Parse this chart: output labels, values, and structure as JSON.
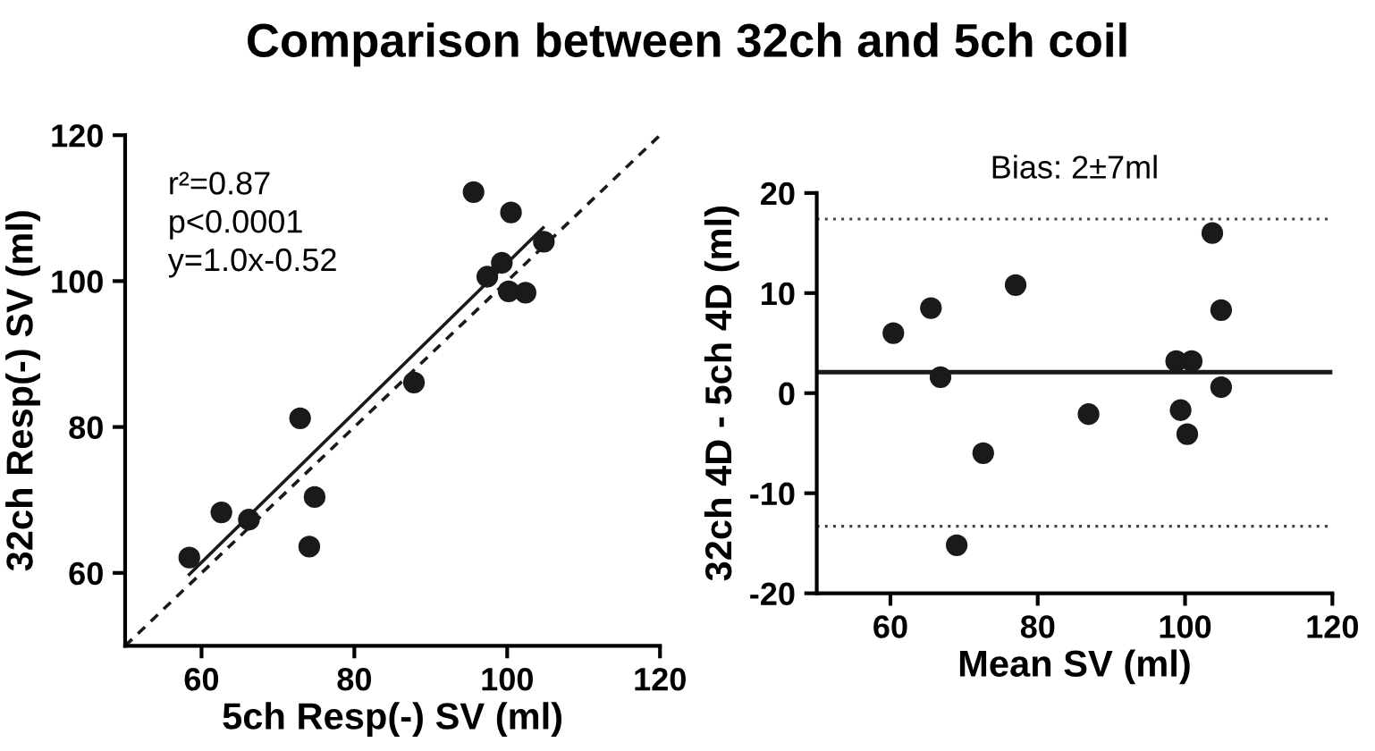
{
  "chart_data": [
    {
      "type": "scatter",
      "title": "Comparison between 32ch and 5ch coil",
      "xlabel": "5ch Resp(-) SV (ml)",
      "ylabel": "32ch Resp(-) SV (ml)",
      "annotations": [
        "r²=0.87",
        "p<0.0001",
        "y=1.0x-0.52"
      ],
      "xlim": [
        50,
        120
      ],
      "ylim": [
        50,
        120
      ],
      "xticks": [
        60,
        80,
        100,
        120
      ],
      "yticks": [
        60,
        80,
        100,
        120
      ],
      "grid": false,
      "legend": false,
      "series": [
        {
          "color": "#1a1a1a",
          "marker": "circle",
          "x": [
            58.4,
            62.6,
            66.2,
            72.9,
            74.8,
            74.1,
            87.8,
            95.6,
            100.5,
            97.4,
            99.3,
            100.2,
            102.4,
            104.8
          ],
          "values": [
            62.1,
            68.3,
            67.3,
            81.2,
            70.4,
            63.6,
            86.1,
            112.2,
            109.4,
            100.6,
            102.5,
            98.6,
            98.4,
            105.4
          ]
        },
        {
          "type": "line",
          "color": "#1a1a1a",
          "line_style": "solid",
          "marker": "none",
          "x": [
            58.4,
            104.7
          ],
          "values": [
            59.8,
            107.3
          ]
        },
        {
          "type": "line",
          "color": "#1a1a1a",
          "line_style": "dashed",
          "marker": "none",
          "x": [
            50,
            120
          ],
          "values": [
            50,
            120
          ]
        }
      ]
    },
    {
      "type": "scatter",
      "xlabel": "Mean SV (ml)",
      "ylabel": "32ch 4D - 5ch 4D (ml)",
      "annotations": [
        "Bias: 2±7ml"
      ],
      "xlim": [
        50,
        120
      ],
      "ylim": [
        -20,
        20
      ],
      "xticks": [
        60,
        80,
        100,
        120
      ],
      "yticks": [
        -20,
        -10,
        0,
        10,
        20
      ],
      "grid": false,
      "legend": false,
      "series": [
        {
          "color": "#1a1a1a",
          "marker": "circle",
          "x": [
            60.4,
            65.5,
            66.8,
            69.0,
            72.6,
            77.0,
            86.9,
            98.8,
            100.9,
            99.4,
            100.3,
            103.7,
            104.9,
            104.9
          ],
          "values": [
            6.0,
            8.5,
            1.6,
            -15.2,
            -6.0,
            10.8,
            -2.1,
            3.2,
            3.2,
            -1.7,
            -4.1,
            16.0,
            8.3,
            0.6
          ]
        }
      ],
      "ref_lines": [
        {
          "axis": "y",
          "value": 2.1,
          "color": "#1a1a1a",
          "line_style": "solid"
        },
        {
          "axis": "y",
          "value": 17.4,
          "color": "#444444",
          "line_style": "dotted"
        },
        {
          "axis": "y",
          "value": -13.3,
          "color": "#444444",
          "line_style": "dotted"
        }
      ]
    }
  ]
}
